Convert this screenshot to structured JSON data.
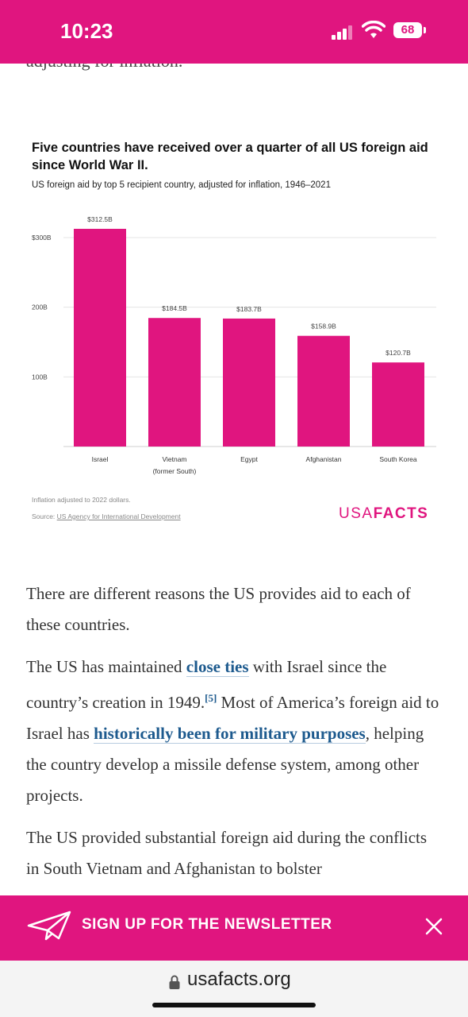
{
  "status_bar": {
    "time": "10:23",
    "battery": "68",
    "icons": [
      "signal-icon",
      "wifi-icon",
      "battery-icon"
    ]
  },
  "clipped_text": "adjusting for inflation.",
  "chart": {
    "note": "Inflation adjusted to 2022 dollars.",
    "source_prefix": "Source: ",
    "source_link": "US Agency for International Development",
    "brand_light": "USA",
    "brand_bold": "FACTS"
  },
  "chart_data": {
    "type": "bar",
    "title": "Five countries have received over a quarter of all US foreign aid since World War II.",
    "subtitle": "US foreign aid by top 5 recipient country, adjusted for inflation, 1946–2021",
    "categories": [
      [
        "Israel"
      ],
      [
        "Vietnam",
        "(former South)"
      ],
      [
        "Egypt"
      ],
      [
        "Afghanistan"
      ],
      [
        "South Korea"
      ]
    ],
    "values": [
      312.5,
      184.5,
      183.7,
      158.9,
      120.7
    ],
    "data_labels": [
      "$312.5B",
      "$184.5B",
      "$183.7B",
      "$158.9B",
      "$120.7B"
    ],
    "y_ticks": [
      {
        "value": 100,
        "label": "100B"
      },
      {
        "value": 200,
        "label": "200B"
      },
      {
        "value": 300,
        "label": "$300B"
      }
    ],
    "ylim": [
      0,
      312.5
    ],
    "grid": true,
    "color": "#e0157f"
  },
  "article": {
    "p1": "There are different reasons the US provides aid to each of these countries.",
    "p2_a": "The US has maintained ",
    "p2_link1": "close ties",
    "p2_b": " with Israel since the country’s creation in 1949.",
    "p2_ref": "[5]",
    "p2_c": " Most of America’s foreign aid to Israel has ",
    "p2_link2": "historically been for military purposes",
    "p2_d": ", helping the country develop a missile defense system, among other projects.",
    "p3": "The US provided substantial foreign aid during the conflicts in South Vietnam and Afghanistan to bolster"
  },
  "newsletter": {
    "label": "SIGN UP FOR THE NEWSLETTER",
    "icons": [
      "paper-plane-icon",
      "close-icon"
    ]
  },
  "browser": {
    "url": "usafacts.org",
    "icons": [
      "lock-icon"
    ]
  }
}
